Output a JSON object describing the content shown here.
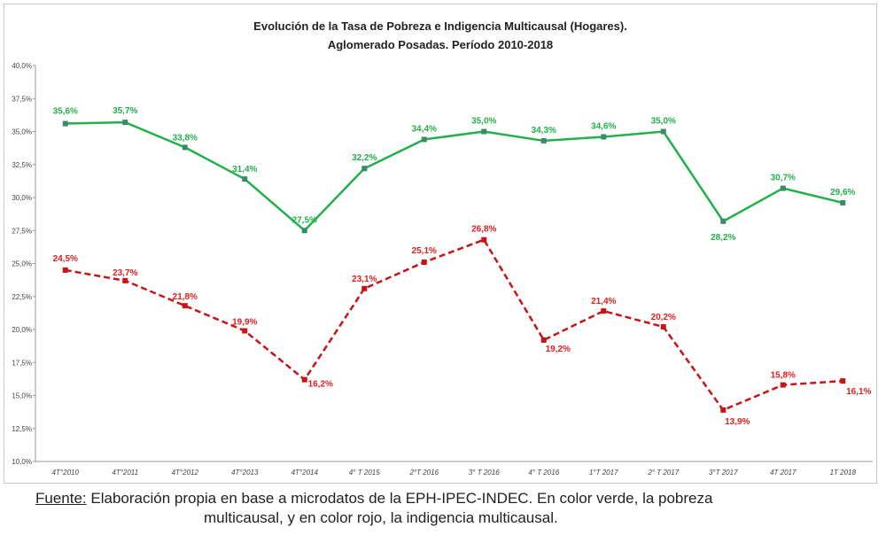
{
  "chart_data": {
    "type": "line",
    "title": [
      "Evolución de la Tasa de Pobreza e Indigencia Multicausal (Hogares).",
      "Aglomerado Posadas. Período 2010-2018"
    ],
    "categories": [
      "4T°2010",
      "4T°2011",
      "4T°2012",
      "4T°2013",
      "4T°2014",
      "4° T 2015",
      "2°T 2016",
      "3° T 2016",
      "4° T 2016",
      "1°T 2017",
      "2° T 2017",
      "3°T 2017",
      "4T 2017",
      "1T 2018"
    ],
    "ylim": [
      10,
      40
    ],
    "yticks": [
      "10,0%",
      "12,5%",
      "15,0%",
      "17,5%",
      "20,0%",
      "22,5%",
      "25,0%",
      "27,5%",
      "30,0%",
      "32,5%",
      "35,0%",
      "37,5%",
      "40,0%"
    ],
    "series": [
      {
        "name": "Pobreza multicausal",
        "color": "#22b04b",
        "style": "solid",
        "values": [
          35.6,
          35.7,
          33.8,
          31.4,
          27.5,
          32.2,
          34.4,
          35.0,
          34.3,
          34.6,
          35.0,
          28.2,
          30.7,
          29.6
        ],
        "labels": [
          "35,6%",
          "35,7%",
          "33,8%",
          "31,4%",
          "27,5%",
          "32,2%",
          "34,4%",
          "35,0%",
          "34,3%",
          "34,6%",
          "35,0%",
          "28,2%",
          "30,7%",
          "29,6%"
        ]
      },
      {
        "name": "Indigencia multicausal",
        "color": "#c81414",
        "style": "dashed",
        "values": [
          24.5,
          23.7,
          21.8,
          19.9,
          16.2,
          23.1,
          25.1,
          26.8,
          19.2,
          21.4,
          20.2,
          13.9,
          15.8,
          16.1
        ],
        "labels": [
          "24,5%",
          "23,7%",
          "21,8%",
          "19,9%",
          "16,2%",
          "23,1%",
          "25,1%",
          "26,8%",
          "19,2%",
          "21,4%",
          "20,2%",
          "13,9%",
          "15,8%",
          "16,1%"
        ]
      }
    ]
  },
  "caption": {
    "source_label": "Fuente:",
    "line1": " Elaboración propia en base a microdatos de la EPH-IPEC-INDEC. En color verde, la pobreza",
    "line2": "multicausal, y en color rojo, la indigencia multicausal."
  }
}
